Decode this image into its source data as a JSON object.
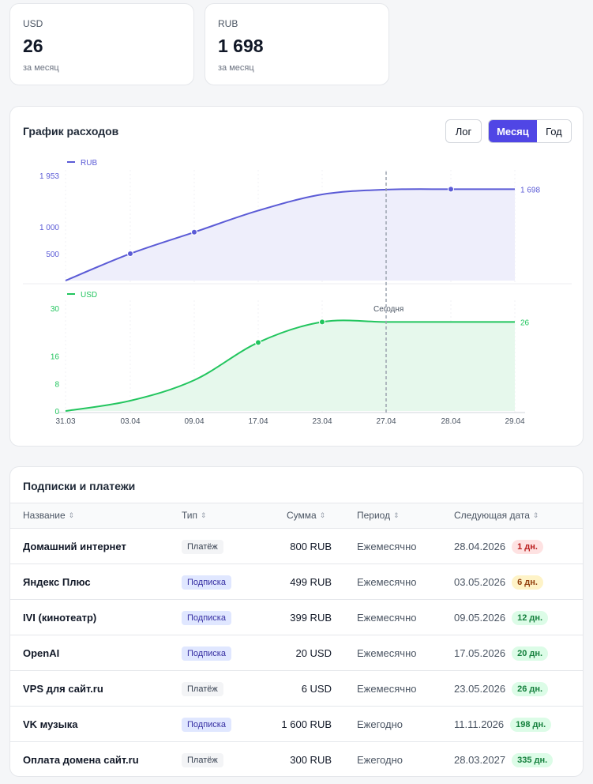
{
  "stats": [
    {
      "label": "USD",
      "value": "26",
      "sub": "за месяц"
    },
    {
      "label": "RUB",
      "value": "1 698",
      "sub": "за месяц"
    }
  ],
  "chart": {
    "title": "График расходов",
    "log_label": "Лог",
    "month_label": "Месяц",
    "year_label": "Год",
    "today_label": "Сегодня",
    "colors": {
      "rub": "#5b5bd6",
      "usd": "#22c55e",
      "accent": "#5046e5"
    }
  },
  "chart_data": [
    {
      "type": "area",
      "series": [
        {
          "name": "RUB",
          "x": [
            "31.03",
            "03.04",
            "09.04",
            "17.04",
            "23.04",
            "27.04",
            "28.04",
            "29.04"
          ],
          "values": [
            0,
            500,
            899,
            1300,
            1600,
            1690,
            1698,
            1698
          ]
        }
      ],
      "y_ticks": [
        "1 953",
        "1 000",
        "500"
      ],
      "end_label": "1 698",
      "ylim": [
        0,
        1953
      ],
      "today": "27.04"
    },
    {
      "type": "area",
      "series": [
        {
          "name": "USD",
          "x": [
            "31.03",
            "03.04",
            "09.04",
            "17.04",
            "23.04",
            "27.04",
            "28.04",
            "29.04"
          ],
          "values": [
            0,
            3,
            9,
            20,
            26,
            26,
            26,
            26
          ]
        }
      ],
      "y_ticks": [
        "30",
        "16",
        "8",
        "0"
      ],
      "x_ticks": [
        "31.03",
        "03.04",
        "09.04",
        "17.04",
        "23.04",
        "27.04",
        "28.04",
        "29.04"
      ],
      "end_label": "26",
      "ylim": [
        0,
        30
      ],
      "today": "27.04"
    }
  ],
  "table": {
    "title": "Подписки и платежи",
    "headers": {
      "name": "Название",
      "type": "Тип",
      "sum": "Сумма",
      "period": "Период",
      "next": "Следующая дата"
    },
    "rows": [
      {
        "name": "Домашний интернет",
        "type": "Платёж",
        "kind": "pay",
        "sum": "800 RUB",
        "period": "Ежемесячно",
        "date": "28.04.2026",
        "days": "1 дн.",
        "level": "red"
      },
      {
        "name": "Яндекс Плюс",
        "type": "Подписка",
        "kind": "sub",
        "sum": "499 RUB",
        "period": "Ежемесячно",
        "date": "03.05.2026",
        "days": "6 дн.",
        "level": "yellow"
      },
      {
        "name": "IVI (кинотеатр)",
        "type": "Подписка",
        "kind": "sub",
        "sum": "399 RUB",
        "period": "Ежемесячно",
        "date": "09.05.2026",
        "days": "12 дн.",
        "level": "green"
      },
      {
        "name": "OpenAI",
        "type": "Подписка",
        "kind": "sub",
        "sum": "20 USD",
        "period": "Ежемесячно",
        "date": "17.05.2026",
        "days": "20 дн.",
        "level": "green"
      },
      {
        "name": "VPS для сайт.ru",
        "type": "Платёж",
        "kind": "pay",
        "sum": "6 USD",
        "period": "Ежемесячно",
        "date": "23.05.2026",
        "days": "26 дн.",
        "level": "green"
      },
      {
        "name": "VK музыка",
        "type": "Подписка",
        "kind": "sub",
        "sum": "1 600 RUB",
        "period": "Ежегодно",
        "date": "11.11.2026",
        "days": "198 дн.",
        "level": "green"
      },
      {
        "name": "Оплата домена сайт.ru",
        "type": "Платёж",
        "kind": "pay",
        "sum": "300 RUB",
        "period": "Ежегодно",
        "date": "28.03.2027",
        "days": "335 дн.",
        "level": "green"
      }
    ],
    "level_colors": {
      "red": {
        "bg": "#fee2e2",
        "fg": "#b91c1c"
      },
      "yellow": {
        "bg": "#fef3c7",
        "fg": "#92400e"
      },
      "green": {
        "bg": "#dcfce7",
        "fg": "#15803d"
      }
    }
  }
}
